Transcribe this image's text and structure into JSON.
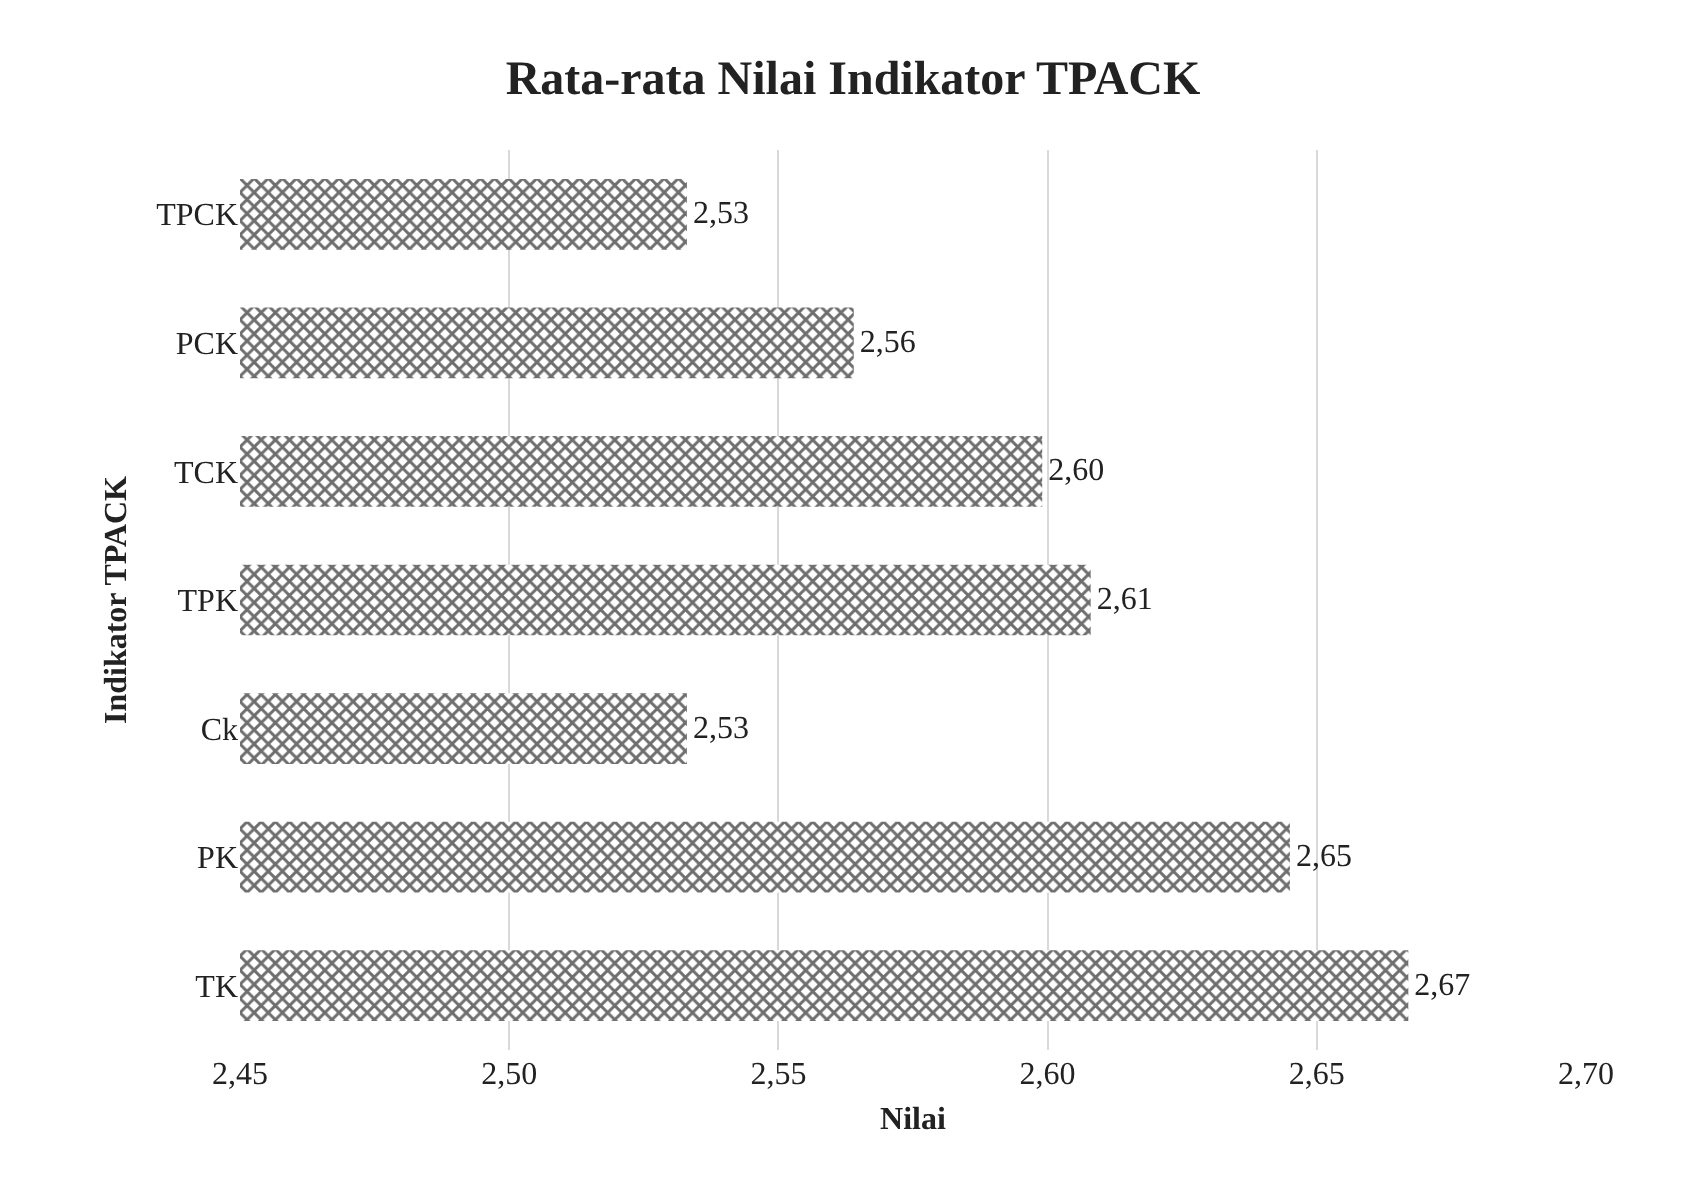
{
  "chart_data": {
    "type": "bar",
    "orientation": "horizontal",
    "title": "Rata-rata Nilai Indikator TPACK",
    "xlabel": "Nilai",
    "ylabel": "Indikator TPACK",
    "categories": [
      "TPCK",
      "PCK",
      "TCK",
      "TPK",
      "Ck",
      "PK",
      "TK"
    ],
    "values": [
      2.533,
      2.564,
      2.599,
      2.608,
      2.533,
      2.645,
      2.667
    ],
    "value_labels": [
      "2,53",
      "2,56",
      "2,60",
      "2,61",
      "2,53",
      "2,65",
      "2,67"
    ],
    "color": "#6e6e6e",
    "xlim": [
      2.45,
      2.7
    ],
    "xticks": [
      {
        "value": 2.45,
        "label": "2,45"
      },
      {
        "value": 2.5,
        "label": "2,50"
      },
      {
        "value": 2.55,
        "label": "2,55"
      },
      {
        "value": 2.6,
        "label": "2,60"
      },
      {
        "value": 2.65,
        "label": "2,65"
      },
      {
        "value": 2.7,
        "label": "2,70"
      }
    ],
    "grid": "x"
  }
}
